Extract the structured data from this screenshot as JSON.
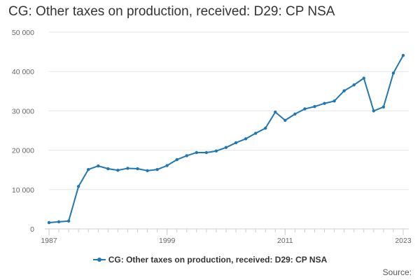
{
  "chart_data": {
    "type": "line",
    "title": "CG: Other taxes on production, received: D29: CP NSA",
    "xlabel": "",
    "ylabel": "",
    "x": [
      1987,
      1988,
      1989,
      1990,
      1991,
      1992,
      1993,
      1994,
      1995,
      1996,
      1997,
      1998,
      1999,
      2000,
      2001,
      2002,
      2003,
      2004,
      2005,
      2006,
      2007,
      2008,
      2009,
      2010,
      2011,
      2012,
      2013,
      2014,
      2015,
      2016,
      2017,
      2018,
      2019,
      2020,
      2021,
      2022,
      2023
    ],
    "series": [
      {
        "name": "CG: Other taxes on production, received: D29: CP NSA",
        "values": [
          1600,
          1800,
          2000,
          10800,
          15100,
          16000,
          15300,
          14900,
          15400,
          15300,
          14800,
          15100,
          16100,
          17600,
          18600,
          19400,
          19400,
          19800,
          20700,
          21900,
          22900,
          24300,
          25600,
          29700,
          27600,
          29200,
          30500,
          31100,
          31900,
          32500,
          35100,
          36600,
          38300,
          30000,
          31000,
          39600,
          44100
        ]
      }
    ],
    "xlim": [
      1987,
      2023
    ],
    "ylim": [
      0,
      50000
    ],
    "xticks": [
      {
        "value": 1987,
        "label": "1987"
      },
      {
        "value": 1999,
        "label": "1999"
      },
      {
        "value": 2011,
        "label": "2011"
      },
      {
        "value": 2023,
        "label": "2023"
      }
    ],
    "yticks": [
      {
        "value": 0,
        "label": "0"
      },
      {
        "value": 10000,
        "label": "10 000"
      },
      {
        "value": 20000,
        "label": "20 000"
      },
      {
        "value": 30000,
        "label": "30 000"
      },
      {
        "value": 40000,
        "label": "40 000"
      },
      {
        "value": 50000,
        "label": "50 000"
      }
    ],
    "grid": "horizontal",
    "legend_position": "bottom-center"
  },
  "colors": {
    "series": "#1f78b4",
    "grid": "#e6e6e6",
    "axis": "#cccccc"
  },
  "source_label": "Source:"
}
